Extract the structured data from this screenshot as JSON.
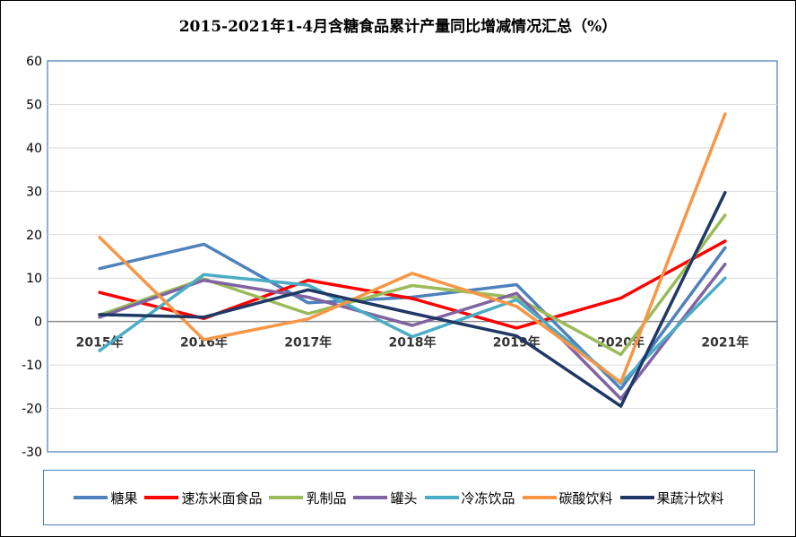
{
  "chart_data": {
    "type": "line",
    "title": "2015-2021年1-4月含糖食品累计产量同比增减情况汇总（%）",
    "xlabel": "",
    "ylabel": "",
    "categories": [
      "2015年",
      "2016年",
      "2017年",
      "2018年",
      "2019年",
      "2020年",
      "2021年"
    ],
    "ylim": [
      -30,
      60
    ],
    "yticks": [
      60,
      50,
      40,
      30,
      20,
      10,
      0,
      -10,
      -20,
      -30
    ],
    "grid": true,
    "legend_position": "bottom",
    "series": [
      {
        "name": "糖果",
        "color": "#4f81bd",
        "values": [
          12.2,
          17.8,
          4.3,
          5.6,
          8.5,
          -15.5,
          17.0
        ]
      },
      {
        "name": "速冻米面食品",
        "color": "#ff0000",
        "values": [
          6.7,
          0.7,
          9.5,
          5.3,
          -1.5,
          5.4,
          18.5
        ]
      },
      {
        "name": "乳制品",
        "color": "#9bbb59",
        "values": [
          1.5,
          9.8,
          1.8,
          8.3,
          5.5,
          -7.6,
          24.5
        ]
      },
      {
        "name": "罐头",
        "color": "#8064a2",
        "values": [
          1.0,
          9.5,
          5.6,
          -0.9,
          6.5,
          -17.8,
          13.2
        ]
      },
      {
        "name": "冷冻饮品",
        "color": "#4bacc6",
        "values": [
          -6.7,
          10.8,
          8.4,
          -3.5,
          5.0,
          -14.2,
          10.0
        ]
      },
      {
        "name": "碳酸饮料",
        "color": "#f79646",
        "values": [
          19.4,
          -4.2,
          0.6,
          11.1,
          3.5,
          -14.0,
          47.8
        ]
      },
      {
        "name": "果蔬汁饮料",
        "color": "#1f3864",
        "values": [
          1.6,
          1.0,
          7.3,
          1.9,
          -3.3,
          -19.5,
          29.7
        ]
      }
    ]
  }
}
